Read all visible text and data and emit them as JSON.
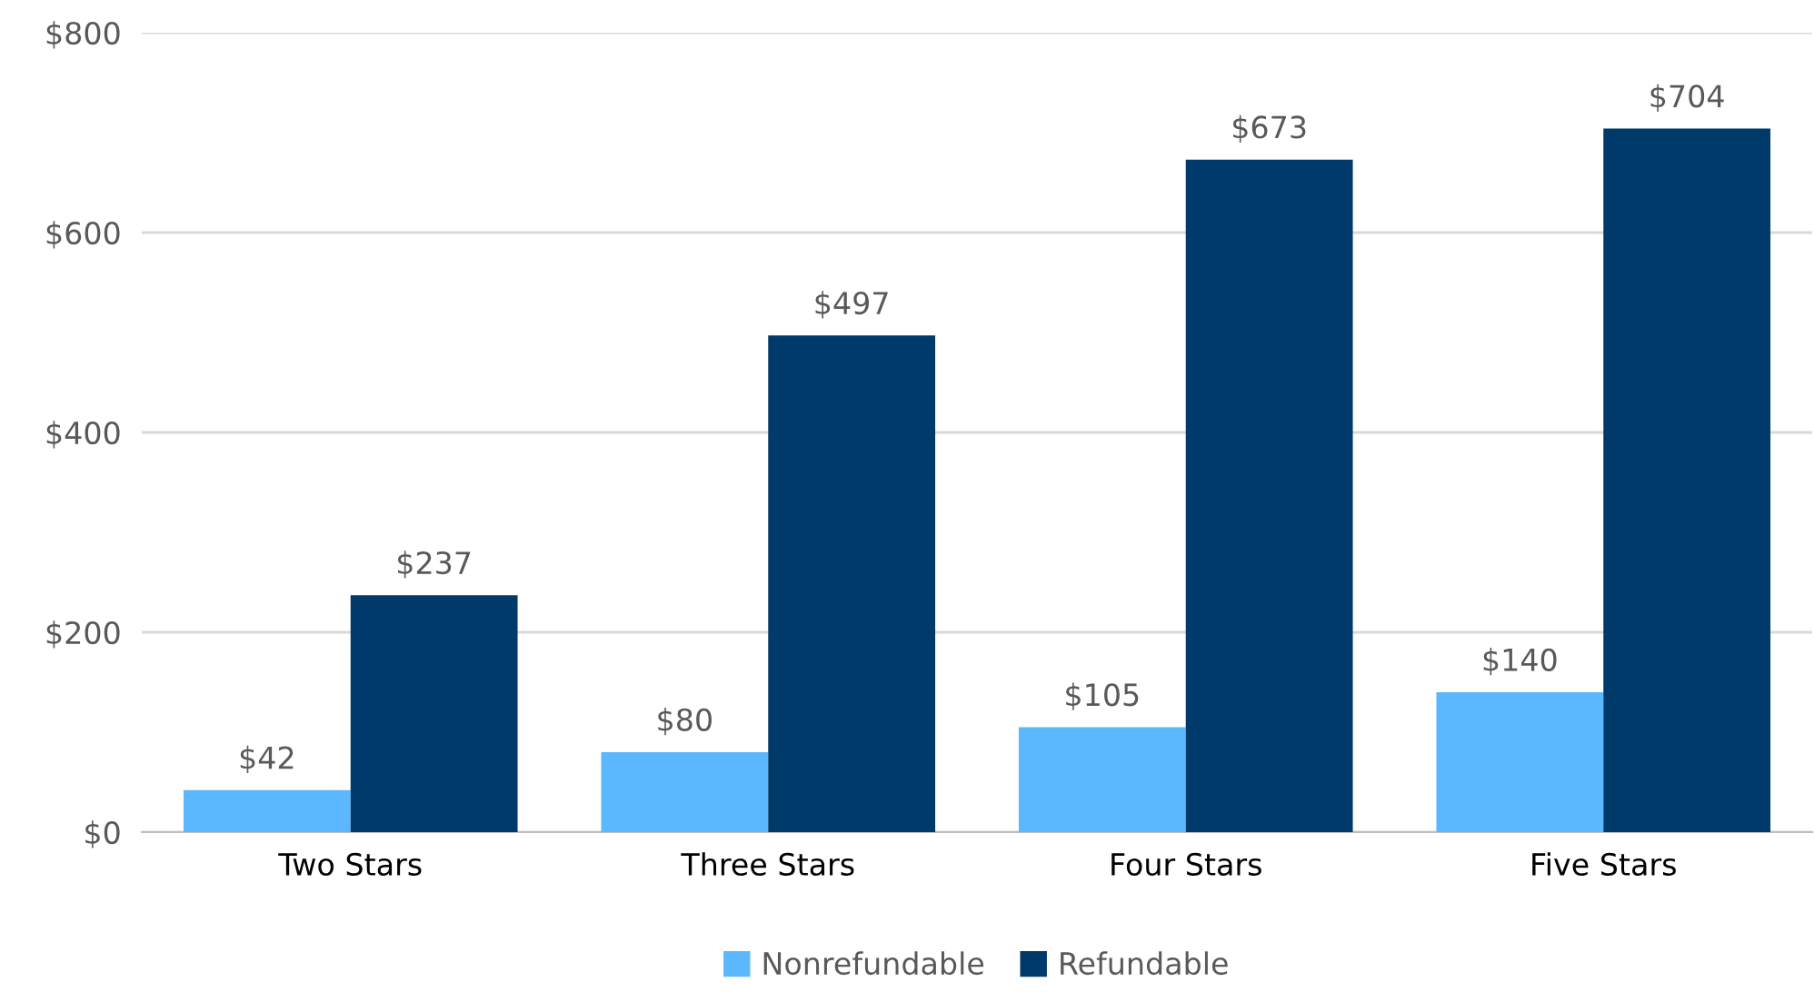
{
  "chart_data": {
    "type": "bar",
    "categories": [
      "Two Stars",
      "Three Stars",
      "Four Stars",
      "Five Stars"
    ],
    "series": [
      {
        "name": "Nonrefundable",
        "color": "#5bb8ff",
        "values": [
          42,
          80,
          105,
          140
        ],
        "value_labels": [
          "$42",
          "$80",
          "$105",
          "$140"
        ]
      },
      {
        "name": "Refundable",
        "color": "#003a6b",
        "values": [
          237,
          497,
          673,
          704
        ],
        "value_labels": [
          "$237",
          "$497",
          "$673",
          "$704"
        ]
      }
    ],
    "ylim": [
      0,
      800
    ],
    "yticks": [
      {
        "value": 0,
        "label": "$0"
      },
      {
        "value": 200,
        "label": "$200"
      },
      {
        "value": 400,
        "label": "$400"
      },
      {
        "value": 600,
        "label": "$600"
      },
      {
        "value": 800,
        "label": "$800"
      }
    ],
    "grid": "y",
    "legend": "bottom"
  }
}
